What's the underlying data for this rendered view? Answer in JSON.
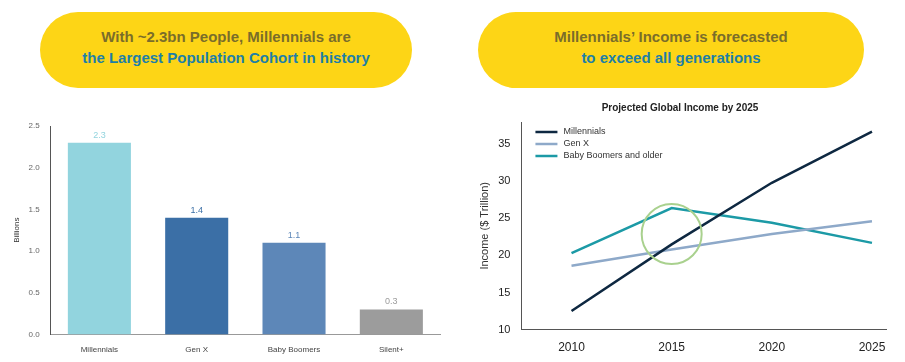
{
  "headers": [
    {
      "lines": [
        "With ~2.3bn People, Millennials are",
        "the Largest Population Cohort in history"
      ]
    },
    {
      "lines": [
        "Millennials’ Income is forecasted",
        "to exceed all generations"
      ]
    }
  ],
  "chart_data": [
    {
      "type": "bar",
      "categories": [
        "Millennials",
        "Gen X",
        "Baby Boomers",
        "Silent+"
      ],
      "values": [
        2.3,
        1.4,
        1.1,
        0.3
      ],
      "colors": [
        "#92d4de",
        "#3b6fa6",
        "#5d87b8",
        "#9c9c9c"
      ],
      "ylabel": "Billions",
      "ylim": [
        0,
        2.5
      ],
      "yticks": [
        {
          "value": 0,
          "label": "0.0"
        },
        0.5,
        {
          "value": 1,
          "label": "1.0"
        },
        1.5,
        {
          "value": 2,
          "label": "2.0"
        },
        2.5
      ],
      "grid": false,
      "data_labels": true
    },
    {
      "type": "line",
      "title": "Projected Global Income by 2025",
      "x": [
        2010,
        2015,
        2020,
        2025
      ],
      "series": [
        {
          "name": "Millennials",
          "color": "#0e2841",
          "values": [
            12.5,
            21.5,
            29.8,
            36.7
          ]
        },
        {
          "name": "Gen X",
          "color": "#8ea9c9",
          "values": [
            18.6,
            20.8,
            22.9,
            24.6
          ]
        },
        {
          "name": "Baby Boomers and older",
          "color": "#1c9aa6",
          "values": [
            20.3,
            26.4,
            24.4,
            21.7
          ]
        }
      ],
      "ylabel": "Income ($ Trillion)",
      "xlim": [
        2007.5,
        2025.7
      ],
      "xticks": [
        2010,
        2015,
        2020,
        2025
      ],
      "ylim": [
        10,
        38
      ],
      "yticks": [
        10,
        15,
        20,
        25,
        30,
        35
      ],
      "grid": false,
      "legend": "upper left"
    }
  ]
}
